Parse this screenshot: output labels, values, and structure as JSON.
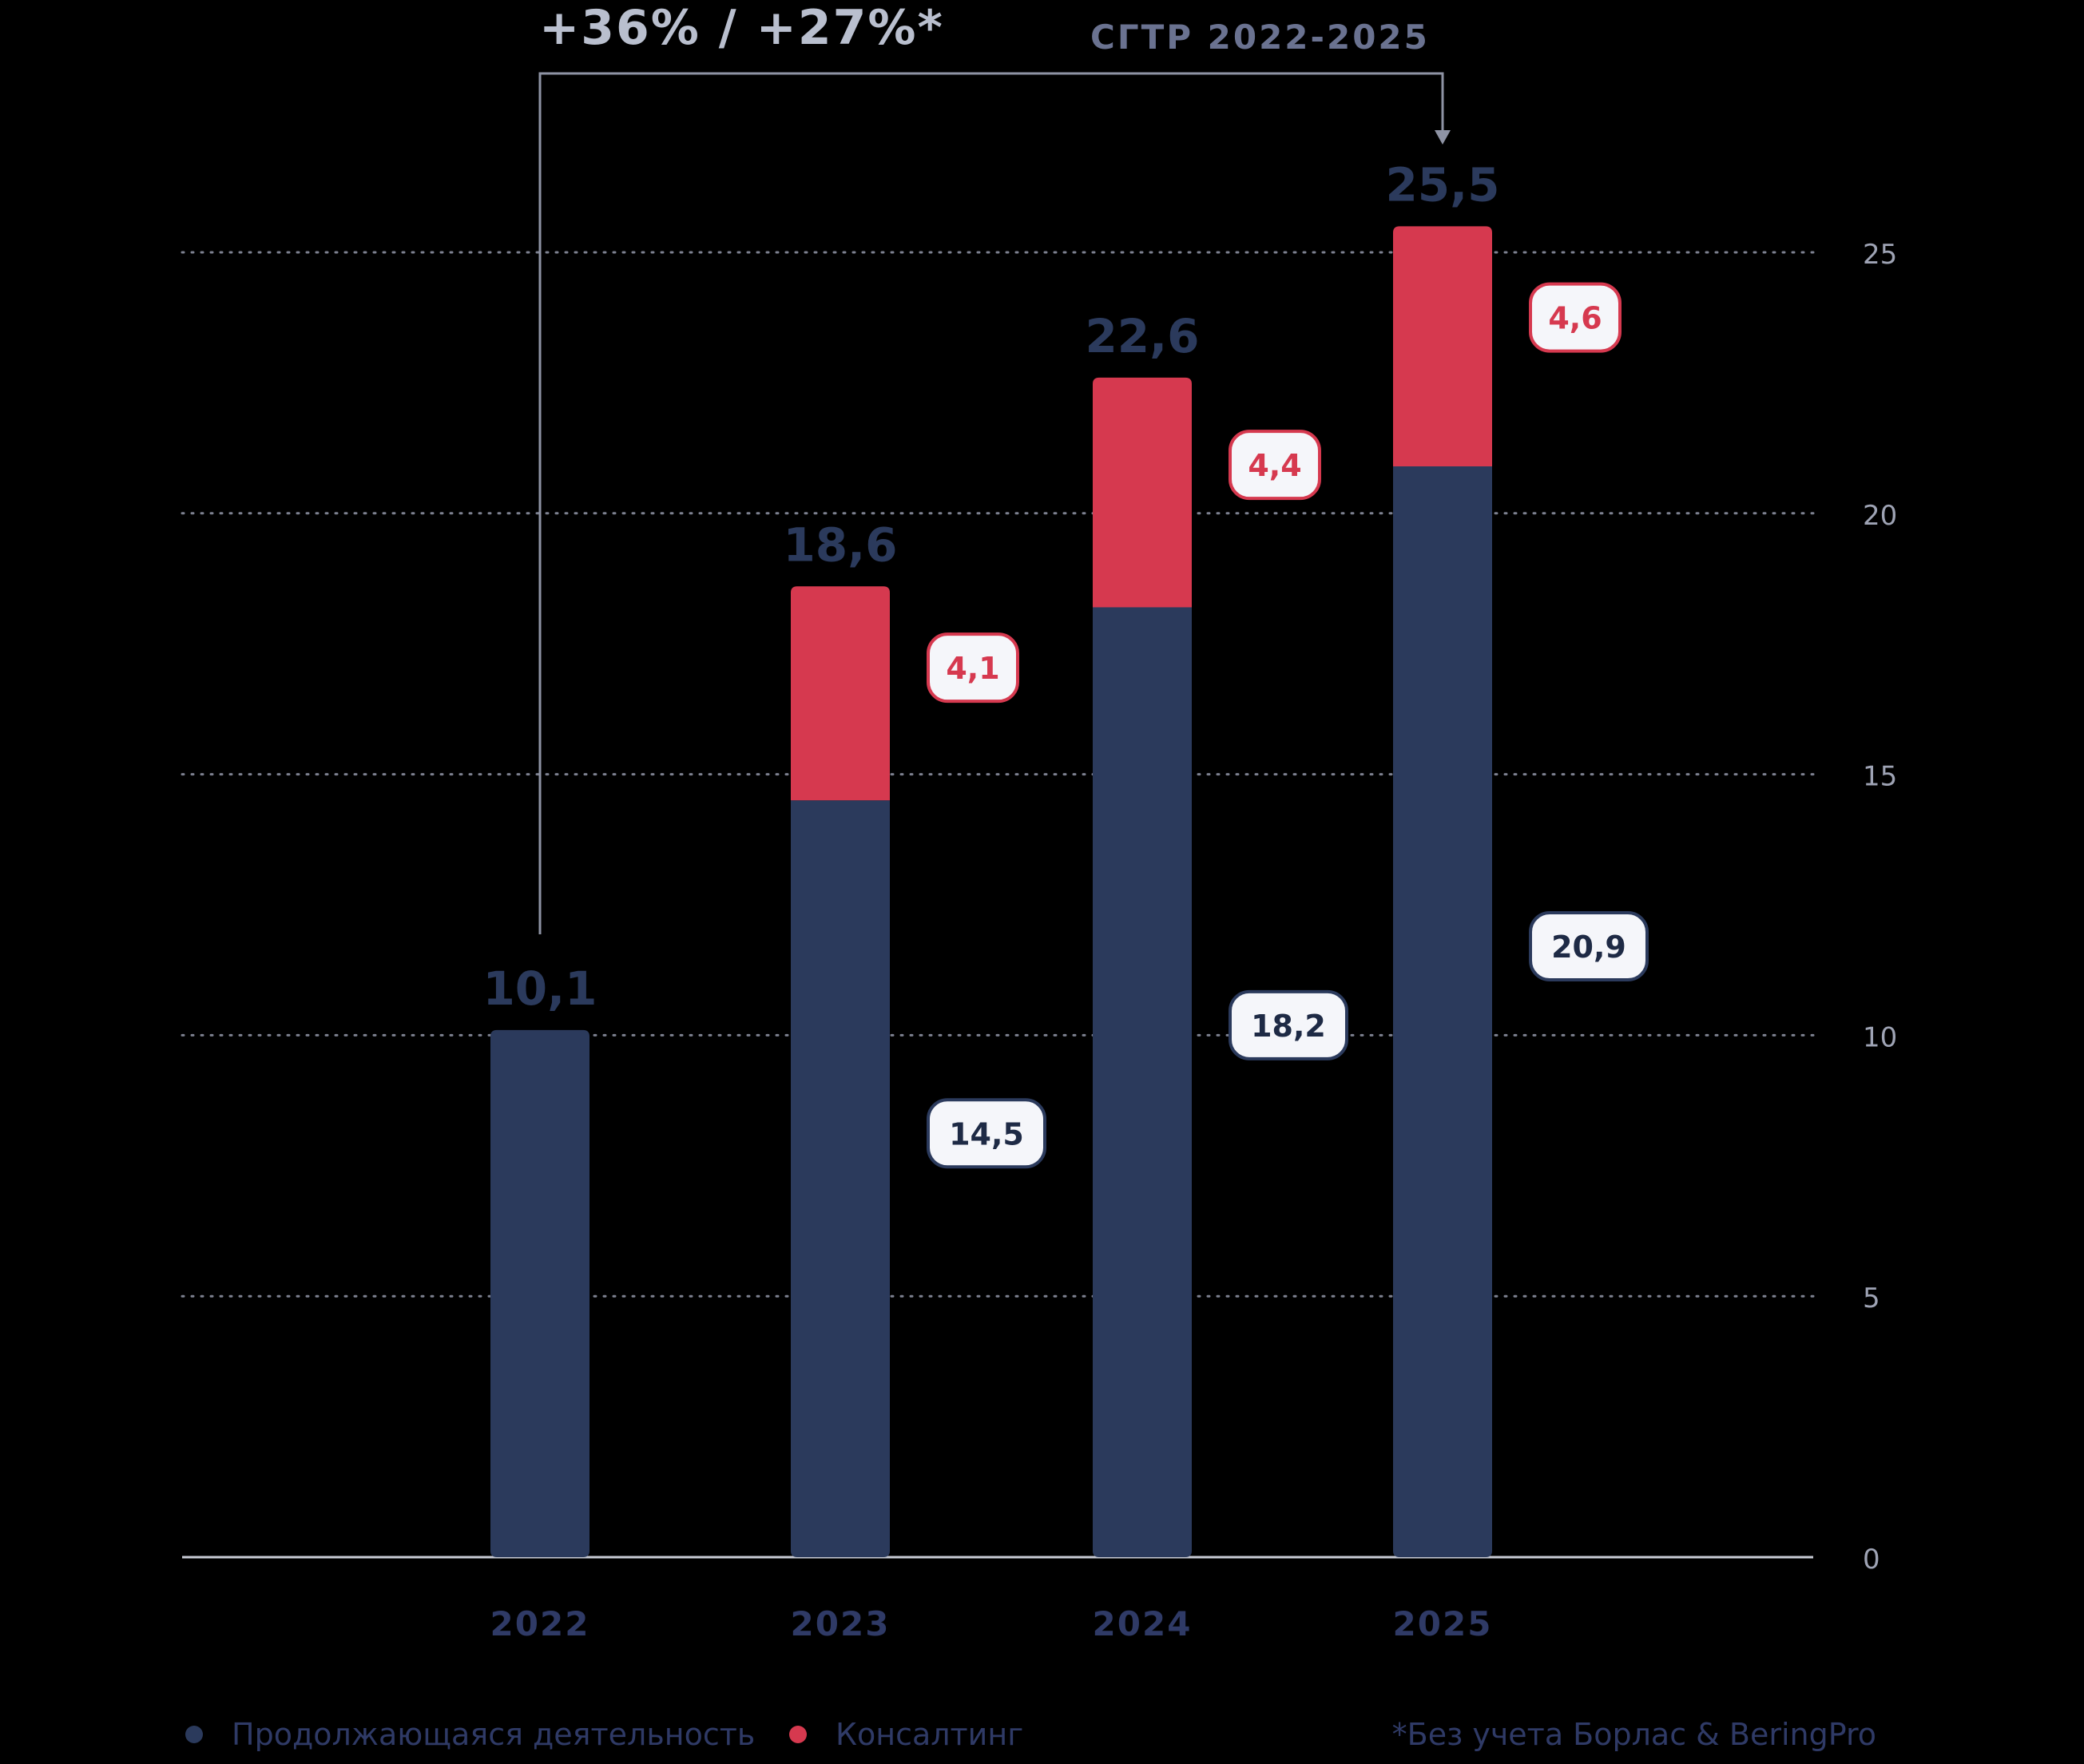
{
  "annotation": {
    "value": "+36% / +27%*",
    "label": "СГТР 2022-2025",
    "from_index": 0,
    "to_index": 3
  },
  "legend": [
    {
      "label": "Продолжающаяся деятельность",
      "color": "#2b3a5c"
    },
    {
      "label": "Консалтинг",
      "color": "#d6394f"
    }
  ],
  "footnote": "*Без учета Борлас & BeringPro",
  "chart_data": {
    "type": "bar",
    "stacked": true,
    "categories": [
      "2022",
      "2023",
      "2024",
      "2025"
    ],
    "series": [
      {
        "name": "Продолжающаяся деятельность",
        "values": [
          10.1,
          14.5,
          18.2,
          20.9
        ],
        "labels": [
          "",
          "14,5",
          "18,2",
          "20,9"
        ],
        "color": "#2b3a5c"
      },
      {
        "name": "Консалтинг",
        "values": [
          0,
          4.1,
          4.4,
          4.6
        ],
        "labels": [
          "",
          "4,1",
          "4,4",
          "4,6"
        ],
        "color": "#d6394f"
      }
    ],
    "totals": [
      "10,1",
      "18,6",
      "22,6",
      "25,5"
    ],
    "yticks": [
      "0",
      "5",
      "10",
      "15",
      "20",
      "25"
    ],
    "ylim": [
      0,
      25
    ],
    "grid": true,
    "y_axis_side": "right",
    "total_label_color": "#2b3a5c",
    "grid_color": "#7d8190",
    "tick_label_color": "#9ea3b4",
    "category_label_color": "#2f3a66"
  }
}
